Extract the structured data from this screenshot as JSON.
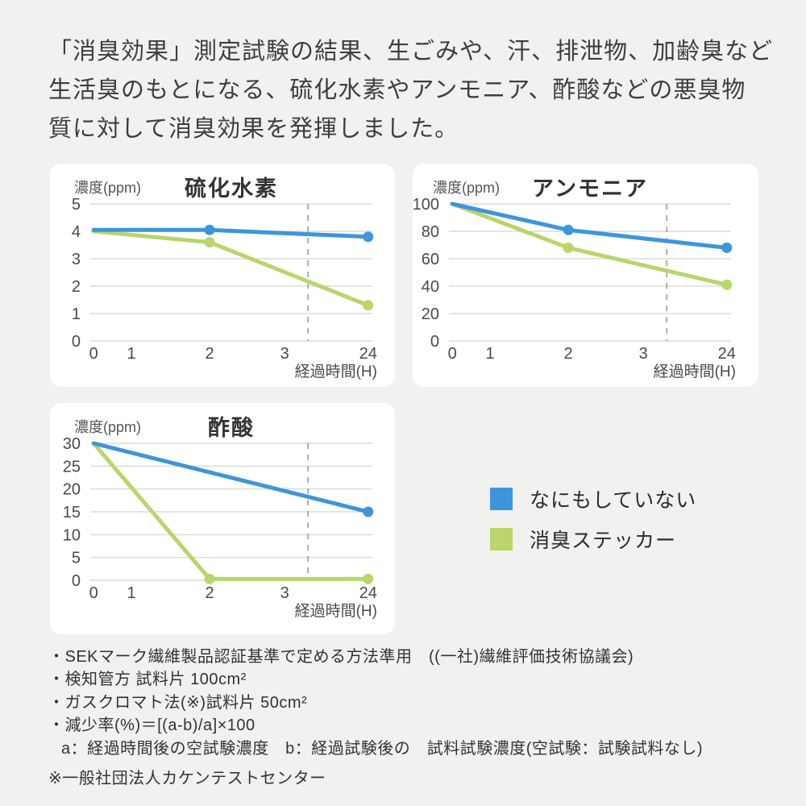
{
  "page": {
    "background": "#F1F1EF",
    "card_background": "#FFFFFF"
  },
  "header": {
    "lines": [
      "「消臭効果」測定試験の結果、生ごみや、汗、排泄物、加齢臭など",
      "生活臭のもとになる、硫化水素やアンモニア、酢酸などの悪臭物",
      "質に対して消臭効果を発揮しました。"
    ]
  },
  "colors": {
    "untreated": "#3D96DB",
    "sticker": "#B9D56B",
    "gridline": "#DBDBDB",
    "dash": "#A8AEB2"
  },
  "legend": {
    "items": [
      {
        "label": "なにもしていない",
        "color_key": "untreated"
      },
      {
        "label": "消臭ステッカー",
        "color_key": "sticker"
      }
    ]
  },
  "chart_data": [
    {
      "type": "line",
      "title": "硫化水素",
      "unit_label": "濃度(ppm)",
      "x_axis_label": "経過時間(H)",
      "x_ticks": [
        0,
        1,
        2,
        3,
        24
      ],
      "y_ticks": [
        0,
        1,
        2,
        3,
        4,
        5
      ],
      "y_max": 5,
      "dash_line": true,
      "grid": true,
      "series": [
        {
          "name": "なにもしていない",
          "color_key": "untreated",
          "points": [
            [
              0,
              4.05
            ],
            [
              2,
              4.05
            ],
            [
              24,
              3.8
            ]
          ],
          "marker_x": [
            2,
            24
          ]
        },
        {
          "name": "消臭ステッカー",
          "color_key": "sticker",
          "points": [
            [
              0,
              4.0
            ],
            [
              2,
              3.6
            ],
            [
              24,
              1.3
            ]
          ],
          "marker_x": [
            2,
            24
          ]
        }
      ]
    },
    {
      "type": "line",
      "title": "アンモニア",
      "unit_label": "濃度(ppm)",
      "x_axis_label": "経過時間(H)",
      "x_ticks": [
        0,
        1,
        2,
        3,
        24
      ],
      "y_ticks": [
        0,
        20,
        40,
        60,
        80,
        100
      ],
      "y_max": 100,
      "dash_line": true,
      "grid": true,
      "series": [
        {
          "name": "なにもしていない",
          "color_key": "untreated",
          "points": [
            [
              0,
              100
            ],
            [
              2,
              81
            ],
            [
              24,
              68
            ]
          ],
          "marker_x": [
            2,
            24
          ]
        },
        {
          "name": "消臭ステッカー",
          "color_key": "sticker",
          "points": [
            [
              0,
              100
            ],
            [
              2,
              68
            ],
            [
              24,
              41
            ]
          ],
          "marker_x": [
            2,
            24
          ]
        }
      ]
    },
    {
      "type": "line",
      "title": "酢酸",
      "unit_label": "濃度(ppm)",
      "x_axis_label": "経過時間(H)",
      "x_ticks": [
        0,
        1,
        2,
        3,
        24
      ],
      "y_ticks": [
        0,
        5,
        10,
        15,
        20,
        25,
        30
      ],
      "y_max": 30,
      "dash_line": true,
      "grid": true,
      "series": [
        {
          "name": "なにもしていない",
          "color_key": "untreated",
          "points": [
            [
              0,
              30
            ],
            [
              24,
              15
            ]
          ],
          "marker_x": [
            24
          ]
        },
        {
          "name": "消臭ステッカー",
          "color_key": "sticker",
          "points": [
            [
              0,
              30
            ],
            [
              2,
              0.3
            ],
            [
              24,
              0.3
            ]
          ],
          "marker_x": [
            2,
            24
          ]
        }
      ]
    }
  ],
  "footnotes": {
    "lines": [
      "・SEKマーク繊維製品認証基準で定める方法準用　((一社)繊維評価技術協議会)",
      "・検知管方 試料片 100cm²",
      "・ガスクロマト法(※)試料片 50cm²",
      "・減少率(%)＝[(a-b)/a]×100",
      "a：経過時間後の空試験濃度　b：経過試験後の　試料試験濃度(空試験：試験試料なし)"
    ],
    "note": "※一般社団法人カケンテストセンター"
  }
}
